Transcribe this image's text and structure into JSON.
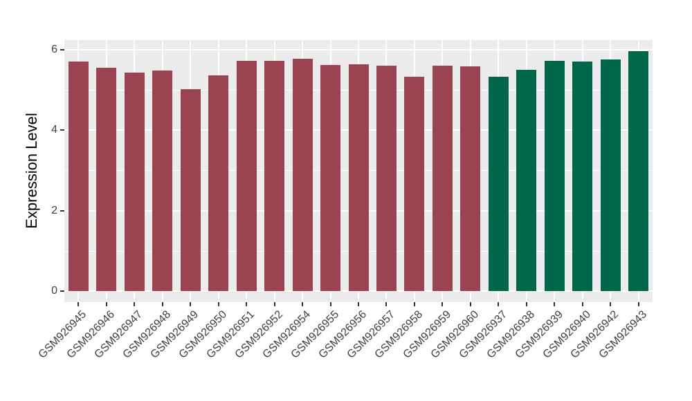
{
  "chart_data": {
    "type": "bar",
    "title": "",
    "xlabel": "",
    "ylabel": "Expression Level",
    "ylim": [
      -0.27,
      6.24
    ],
    "yticks_major": [
      0,
      2,
      4,
      6
    ],
    "yticks_minor": [
      1,
      3,
      5
    ],
    "legend_position": "none",
    "grid": "white major+minor horizontal lines and major vertical lines on gray panel",
    "categories": [
      "GSM926945",
      "GSM926946",
      "GSM926947",
      "GSM926948",
      "GSM926949",
      "GSM926950",
      "GSM926951",
      "GSM926952",
      "GSM926954",
      "GSM926955",
      "GSM926956",
      "GSM926957",
      "GSM926958",
      "GSM926959",
      "GSM926960",
      "GSM926937",
      "GSM926938",
      "GSM926939",
      "GSM926940",
      "GSM926942",
      "GSM926943"
    ],
    "values": [
      5.71,
      5.56,
      5.44,
      5.49,
      5.02,
      5.37,
      5.73,
      5.73,
      5.77,
      5.63,
      5.64,
      5.61,
      5.33,
      5.6,
      5.59,
      5.33,
      5.5,
      5.72,
      5.7,
      5.76,
      5.96
    ],
    "groups": [
      "group_a",
      "group_a",
      "group_a",
      "group_a",
      "group_a",
      "group_a",
      "group_a",
      "group_a",
      "group_a",
      "group_a",
      "group_a",
      "group_a",
      "group_a",
      "group_a",
      "group_a",
      "group_b",
      "group_b",
      "group_b",
      "group_b",
      "group_b",
      "group_b"
    ],
    "group_colors": {
      "group_a": "#9B4350",
      "group_b": "#00674A"
    }
  },
  "style": {
    "panel_bg": "#EBEBEB",
    "grid_color": "#FFFFFF",
    "tick_mark_color": "#333333",
    "tick_label_color": "#404040",
    "axis_title_color": "#000000"
  }
}
